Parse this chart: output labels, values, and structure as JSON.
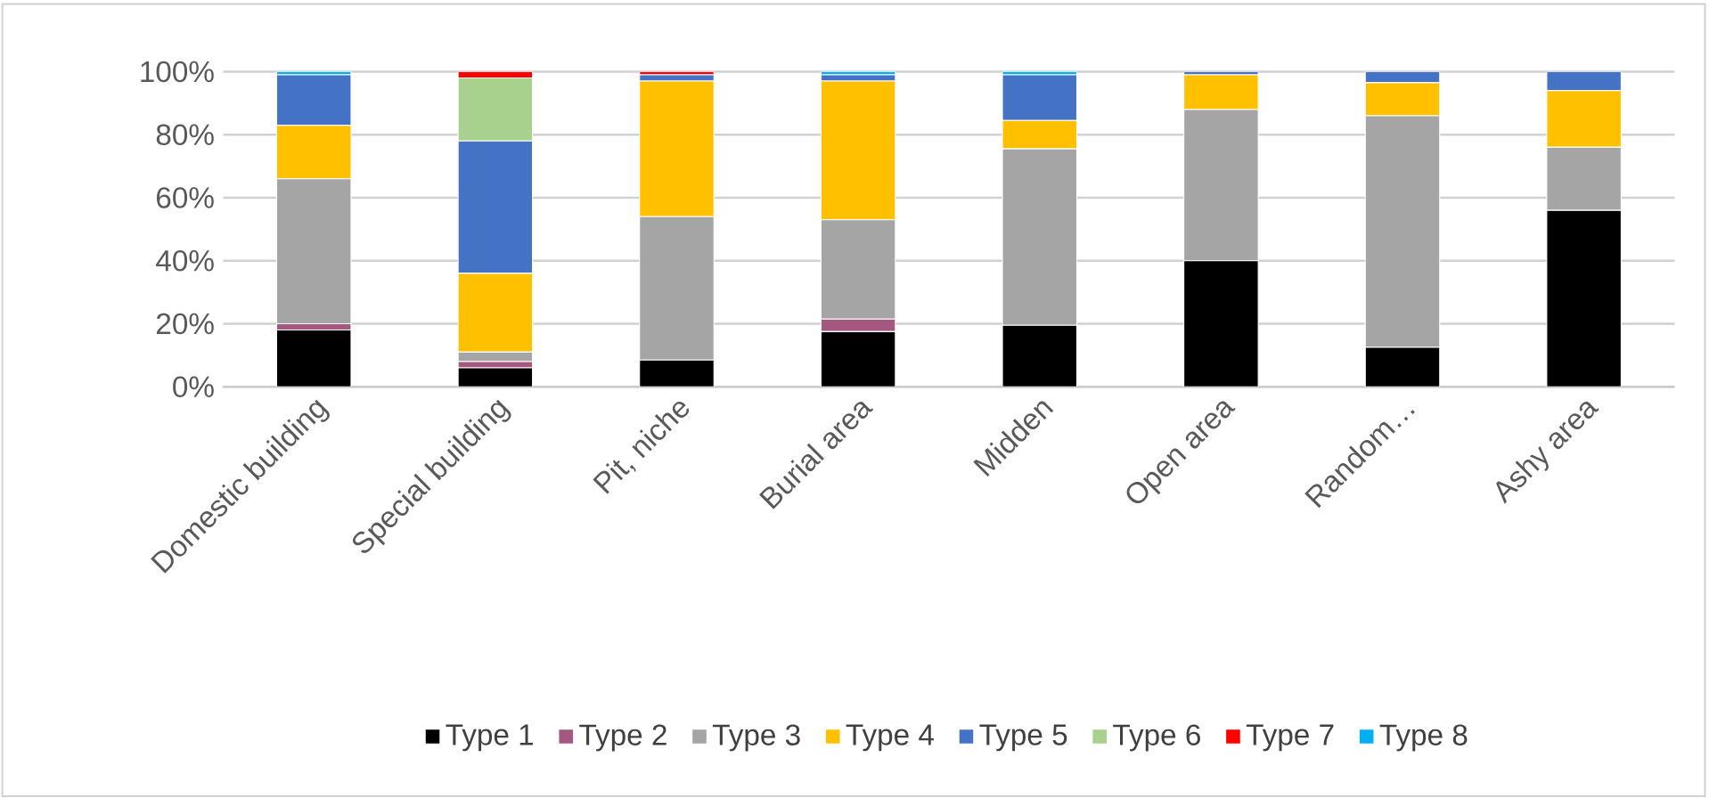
{
  "chart_data": {
    "type": "bar",
    "stacked": true,
    "categories": [
      "Domestic building",
      "Special building",
      "Pit, niche",
      "Burial area",
      "Midden",
      "Open area",
      "Random…",
      "Ashy area"
    ],
    "series": [
      {
        "name": "Type 1",
        "color": "#000000",
        "values": [
          18,
          6,
          8.5,
          17.5,
          19.5,
          40,
          12.5,
          56
        ]
      },
      {
        "name": "Type 2",
        "color": "#a5587f",
        "values": [
          2,
          2,
          0,
          4,
          0,
          0,
          0,
          0
        ]
      },
      {
        "name": "Type 3",
        "color": "#a5a5a5",
        "values": [
          46,
          3,
          45.5,
          31.5,
          56,
          48,
          73.5,
          20
        ]
      },
      {
        "name": "Type 4",
        "color": "#ffc000",
        "values": [
          17,
          25,
          43,
          44,
          9,
          11,
          10.5,
          18
        ]
      },
      {
        "name": "Type 5",
        "color": "#4472c4",
        "values": [
          16,
          42,
          2,
          2,
          14.5,
          1,
          3.5,
          6
        ]
      },
      {
        "name": "Type 6",
        "color": "#a9d18e",
        "values": [
          0,
          20,
          0,
          0,
          0,
          0,
          0,
          0
        ]
      },
      {
        "name": "Type 7",
        "color": "#ff0000",
        "values": [
          0,
          2,
          1,
          null,
          0,
          0,
          0,
          0
        ]
      },
      {
        "name": "Type 8",
        "color": "#00b0f0",
        "values": [
          1,
          0,
          0,
          1,
          1,
          0,
          0,
          0
        ]
      }
    ],
    "ylim": [
      0,
      100
    ],
    "yticks": [
      {
        "value": 0,
        "label": "0%"
      },
      {
        "value": 20,
        "label": "20%"
      },
      {
        "value": 40,
        "label": "40%"
      },
      {
        "value": 60,
        "label": "60%"
      },
      {
        "value": 80,
        "label": "80%"
      },
      {
        "value": 100,
        "label": "100%"
      }
    ],
    "grid": "y",
    "legend": "bottom"
  }
}
